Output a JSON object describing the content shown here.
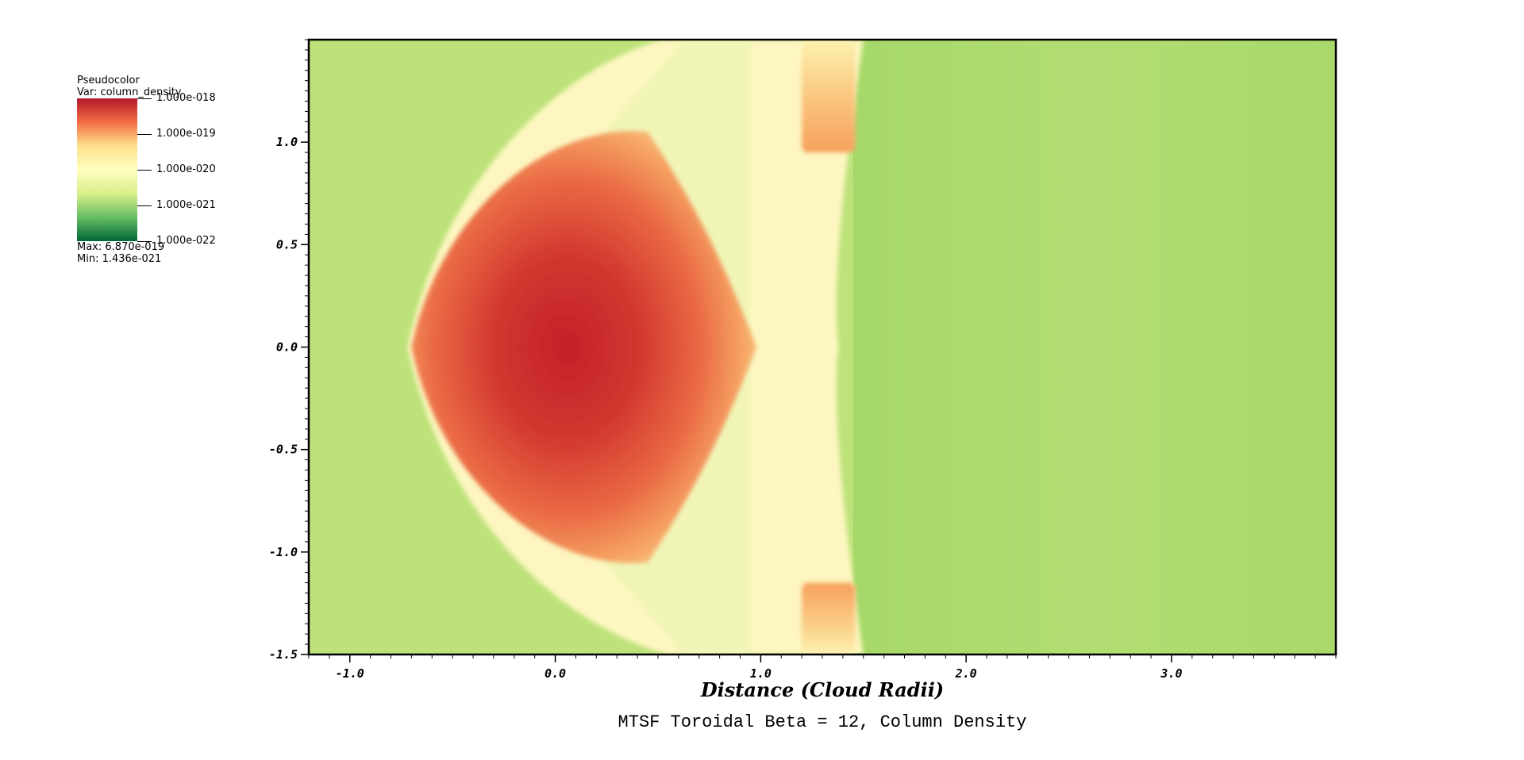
{
  "legend": {
    "title": "Pseudocolor",
    "var_label": "Var: column_density",
    "tick_labels": [
      "1.000e-018",
      "1.000e-019",
      "1.000e-020",
      "1.000e-021",
      "1.000e-022"
    ],
    "max_label": "Max:  6.870e-019",
    "min_label": "Min:  1.436e-021",
    "colors": [
      "#b2182b",
      "#f46d43",
      "#fee08b",
      "#ffffbf",
      "#d9ef8b",
      "#66bd63",
      "#006837"
    ]
  },
  "chart_data": {
    "type": "heatmap",
    "title": "MTSF Toroidal Beta = 12, Column Density",
    "xlabel": "Distance (Cloud Radii)",
    "ylabel": "",
    "xlim": [
      -1.2,
      3.8
    ],
    "ylim": [
      -1.5,
      1.5
    ],
    "x_ticks": [
      -1.0,
      0.0,
      1.0,
      2.0,
      3.0
    ],
    "x_tick_labels": [
      "-1.0",
      "0.0",
      "1.0",
      "2.0",
      "3.0"
    ],
    "y_ticks": [
      1.0,
      0.5,
      0.0,
      -0.5,
      -1.0,
      -1.5
    ],
    "y_tick_labels": [
      "1.0",
      "0.5",
      "0.0",
      "-0.5",
      "-1.0",
      "-1.5"
    ],
    "variable": "column_density",
    "scale": "log",
    "colorbar_range": [
      1e-22,
      1e-18
    ],
    "max": 6.87e-19,
    "min": 1.436e-21,
    "background_color": "#bde27a",
    "wake_color": "#a8d96a",
    "core_color": "#c62a2f",
    "shell_color": "#fdf6c0"
  }
}
